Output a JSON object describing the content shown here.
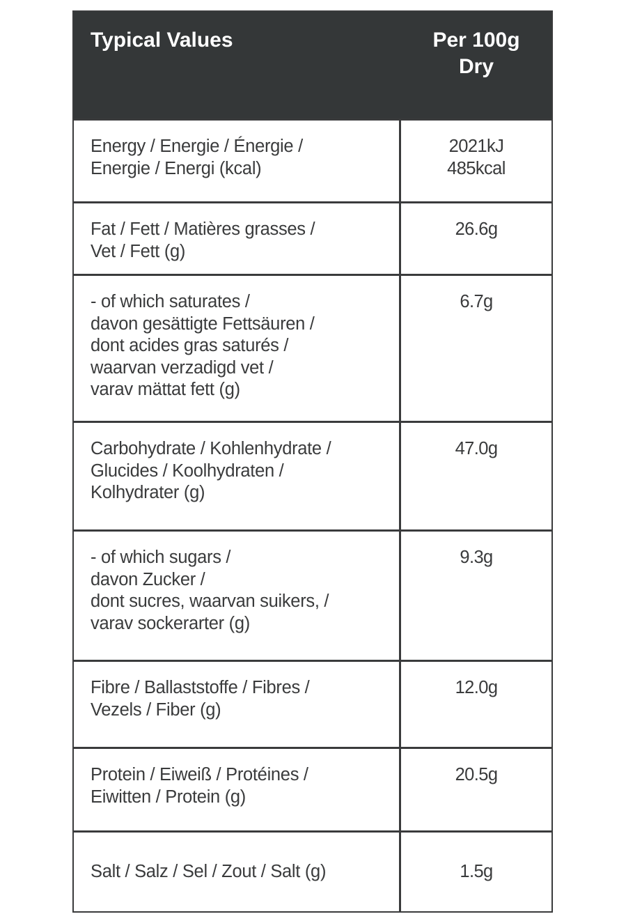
{
  "header": {
    "label": "Typical Values",
    "value_lines": [
      "Per 100g",
      "Dry"
    ]
  },
  "rows": [
    {
      "label_lines": [
        "Energy / Energie / Énergie /",
        "Energie / Energi (kcal)"
      ],
      "value_lines": [
        "2021kJ",
        "485kcal"
      ]
    },
    {
      "label_lines": [
        "Fat / Fett / Matières grasses /",
        "Vet / Fett (g)"
      ],
      "value_lines": [
        "26.6g"
      ]
    },
    {
      "label_lines": [
        "- of which saturates /",
        "davon gesättigte Fettsäuren /",
        "dont acides gras saturés /",
        "waarvan verzadigd vet /",
        "varav mättat fett (g)"
      ],
      "value_lines": [
        "6.7g"
      ]
    },
    {
      "label_lines": [
        "Carbohydrate / Kohlenhydrate /",
        "Glucides / Koolhydraten /",
        "Kolhydrater (g)"
      ],
      "value_lines": [
        "47.0g"
      ]
    },
    {
      "label_lines": [
        "- of which sugars /",
        "davon Zucker /",
        "dont sucres,  waarvan suikers, /",
        "varav sockerarter (g)"
      ],
      "value_lines": [
        "9.3g"
      ]
    },
    {
      "label_lines": [
        "Fibre / Ballaststoffe / Fibres /",
        "Vezels / Fiber (g)"
      ],
      "value_lines": [
        "12.0g"
      ]
    },
    {
      "label_lines": [
        "Protein / Eiweiß / Protéines /",
        "Eiwitten / Protein (g)"
      ],
      "value_lines": [
        "20.5g"
      ]
    },
    {
      "label_lines": [
        "Salt / Salz / Sel / Zout / Salt (g)"
      ],
      "value_lines": [
        "1.5g"
      ]
    }
  ]
}
